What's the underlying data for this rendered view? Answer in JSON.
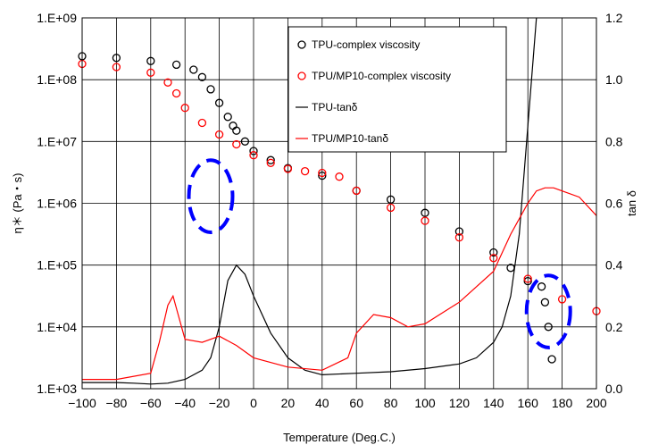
{
  "chart_data": {
    "type": "scatter",
    "title": "",
    "xlabel": "Temperature (Deg.C.)",
    "ylabel_left": "η＊ (Pa・s)",
    "ylabel_right": "tan δ",
    "xlim": [
      -100,
      200
    ],
    "x_ticks": [
      -100,
      -80,
      -60,
      -40,
      -20,
      0,
      20,
      40,
      60,
      80,
      100,
      120,
      140,
      160,
      180,
      200
    ],
    "ylim_left": [
      1000,
      1000000000
    ],
    "y_scale_left": "log",
    "y_ticks_left": [
      "1.E+03",
      "1.E+04",
      "1.E+05",
      "1.E+06",
      "1.E+07",
      "1.E+08",
      "1.E+09"
    ],
    "ylim_right": [
      0,
      1.2
    ],
    "y_ticks_right": [
      "0.0",
      "0.2",
      "0.4",
      "0.6",
      "0.8",
      "1.0",
      "1.2"
    ],
    "grid": true,
    "legend_position": "top-right",
    "series": [
      {
        "name": "TPU-complex viscosity",
        "axis": "left",
        "marker": "circle",
        "color": "#000000",
        "x": [
          -100,
          -80,
          -60,
          -45,
          -35,
          -30,
          -25,
          -20,
          -15,
          -12,
          -10,
          -5,
          0,
          10,
          20,
          40,
          60,
          80,
          100,
          120,
          140,
          150,
          160,
          168,
          170,
          172,
          174
        ],
        "y": [
          240000000,
          225000000,
          200000000,
          175000000,
          145000000,
          110000000,
          70000000,
          42000000,
          25000000,
          18000000,
          15000000,
          10000000,
          7000000,
          5000000,
          3700000,
          2800000,
          1600000,
          1150000,
          700000,
          350000,
          160000,
          90000,
          55000,
          45000,
          25000,
          10000,
          3000
        ]
      },
      {
        "name": "TPU/MP10-complex viscosity",
        "axis": "left",
        "marker": "circle",
        "color": "#ff0000",
        "x": [
          -100,
          -80,
          -60,
          -50,
          -45,
          -40,
          -30,
          -20,
          -10,
          0,
          10,
          20,
          30,
          40,
          50,
          60,
          80,
          100,
          120,
          140,
          160,
          180,
          200
        ],
        "y": [
          180000000,
          160000000,
          130000000,
          90000000,
          60000000,
          35000000,
          20000000,
          13000000,
          9000000,
          6000000,
          4500000,
          3600000,
          3300000,
          3100000,
          2700000,
          1600000,
          850000,
          520000,
          280000,
          130000,
          60000,
          28000,
          18000
        ]
      },
      {
        "name": "TPU-tanδ",
        "axis": "right",
        "marker": "line",
        "color": "#000000",
        "x": [
          -100,
          -80,
          -70,
          -60,
          -50,
          -40,
          -30,
          -25,
          -20,
          -15,
          -10,
          -5,
          0,
          10,
          20,
          30,
          40,
          60,
          80,
          100,
          120,
          130,
          140,
          145,
          150,
          155,
          160,
          165
        ],
        "y": [
          0.02,
          0.02,
          0.018,
          0.015,
          0.018,
          0.03,
          0.06,
          0.1,
          0.2,
          0.35,
          0.4,
          0.37,
          0.3,
          0.18,
          0.1,
          0.06,
          0.045,
          0.05,
          0.055,
          0.065,
          0.08,
          0.1,
          0.15,
          0.2,
          0.3,
          0.5,
          0.85,
          1.2
        ]
      },
      {
        "name": "TPU/MP10-tanδ",
        "axis": "right",
        "marker": "line",
        "color": "#ff0000",
        "x": [
          -100,
          -80,
          -60,
          -55,
          -50,
          -47,
          -45,
          -40,
          -30,
          -20,
          -10,
          0,
          20,
          40,
          55,
          60,
          70,
          80,
          90,
          100,
          120,
          140,
          150,
          160,
          165,
          170,
          175,
          180,
          190,
          200
        ],
        "y": [
          0.03,
          0.03,
          0.05,
          0.15,
          0.27,
          0.3,
          0.26,
          0.16,
          0.15,
          0.17,
          0.14,
          0.1,
          0.07,
          0.06,
          0.1,
          0.18,
          0.24,
          0.23,
          0.2,
          0.21,
          0.28,
          0.38,
          0.5,
          0.6,
          0.64,
          0.65,
          0.65,
          0.64,
          0.62,
          0.56
        ]
      }
    ],
    "annotations": [
      {
        "shape": "dashed-ellipse",
        "color": "#0000ff",
        "cx": -25,
        "cy": 1300000,
        "rx_data": 15
      },
      {
        "shape": "dashed-ellipse",
        "color": "#0000ff",
        "cx": 172,
        "cy": 0.25,
        "rx_data": 15
      }
    ]
  }
}
